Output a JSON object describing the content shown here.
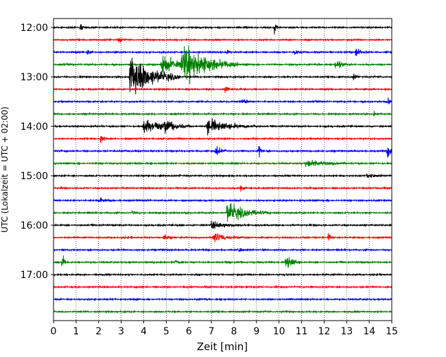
{
  "chart_data": {
    "type": "line",
    "xlabel": "Zeit  [min]",
    "ylabel": "UTC (Lokalzeit = UTC + 02:00)",
    "xlim": [
      0,
      15
    ],
    "xticks": [
      "0",
      "1",
      "2",
      "3",
      "4",
      "5",
      "6",
      "7",
      "8",
      "9",
      "10",
      "11",
      "12",
      "13",
      "14",
      "15"
    ],
    "yticks": [
      "12:00",
      "13:00",
      "14:00",
      "15:00",
      "16:00",
      "17:00"
    ],
    "grid": "vertical dotted at each minute",
    "trace_interval_minutes": 15,
    "trace_count": 24,
    "trace_start": "12:00",
    "trace_colors": [
      "#000000",
      "#ff0000",
      "#0000ff",
      "#008000"
    ],
    "events": [
      {
        "trace": 0,
        "x": 9.8,
        "amp": 0.8,
        "dur": 0.1
      },
      {
        "trace": 0,
        "x": 1.2,
        "amp": 0.5,
        "dur": 0.1
      },
      {
        "trace": 1,
        "x": 2.9,
        "amp": 0.5,
        "dur": 0.1
      },
      {
        "trace": 2,
        "x": 1.5,
        "amp": 0.45,
        "dur": 0.1
      },
      {
        "trace": 2,
        "x": 7.7,
        "amp": 0.4,
        "dur": 0.1
      },
      {
        "trace": 2,
        "x": 10.7,
        "amp": 0.45,
        "dur": 0.1
      },
      {
        "trace": 2,
        "x": 13.4,
        "amp": 0.6,
        "dur": 0.2
      },
      {
        "trace": 3,
        "x": 4.8,
        "amp": 1.4,
        "dur": 0.6
      },
      {
        "trace": 3,
        "x": 5.7,
        "amp": 2.6,
        "dur": 1.0
      },
      {
        "trace": 3,
        "x": 12.5,
        "amp": 0.6,
        "dur": 0.3
      },
      {
        "trace": 4,
        "x": 3.4,
        "amp": 2.8,
        "dur": 0.9
      },
      {
        "trace": 4,
        "x": 13.3,
        "amp": 0.4,
        "dur": 0.1
      },
      {
        "trace": 5,
        "x": 7.6,
        "amp": 0.8,
        "dur": 0.1
      },
      {
        "trace": 6,
        "x": 8.3,
        "amp": 0.4,
        "dur": 0.3
      },
      {
        "trace": 6,
        "x": 14.8,
        "amp": 0.45,
        "dur": 0.1
      },
      {
        "trace": 7,
        "x": 14.2,
        "amp": 0.35,
        "dur": 0.1
      },
      {
        "trace": 8,
        "x": 4.0,
        "amp": 1.0,
        "dur": 0.7
      },
      {
        "trace": 8,
        "x": 4.9,
        "amp": 0.6,
        "dur": 0.5
      },
      {
        "trace": 8,
        "x": 6.8,
        "amp": 1.0,
        "dur": 0.9
      },
      {
        "trace": 9,
        "x": 2.1,
        "amp": 0.8,
        "dur": 0.1
      },
      {
        "trace": 10,
        "x": 7.2,
        "amp": 0.7,
        "dur": 0.2
      },
      {
        "trace": 10,
        "x": 9.1,
        "amp": 0.9,
        "dur": 0.1
      },
      {
        "trace": 10,
        "x": 14.8,
        "amp": 0.9,
        "dur": 0.3
      },
      {
        "trace": 11,
        "x": 11.2,
        "amp": 0.5,
        "dur": 0.7
      },
      {
        "trace": 12,
        "x": 13.9,
        "amp": 0.4,
        "dur": 0.3
      },
      {
        "trace": 13,
        "x": 8.3,
        "amp": 0.5,
        "dur": 0.1
      },
      {
        "trace": 14,
        "x": 2.0,
        "amp": 0.3,
        "dur": 0.3
      },
      {
        "trace": 15,
        "x": 7.7,
        "amp": 1.3,
        "dur": 0.8
      },
      {
        "trace": 15,
        "x": 3.5,
        "amp": 0.35,
        "dur": 0.1
      },
      {
        "trace": 16,
        "x": 7.0,
        "amp": 0.5,
        "dur": 0.6
      },
      {
        "trace": 17,
        "x": 4.9,
        "amp": 0.4,
        "dur": 0.2
      },
      {
        "trace": 17,
        "x": 7.1,
        "amp": 0.6,
        "dur": 0.6
      },
      {
        "trace": 17,
        "x": 12.2,
        "amp": 0.9,
        "dur": 0.1
      },
      {
        "trace": 18,
        "x": 8.2,
        "amp": 0.3,
        "dur": 0.2
      },
      {
        "trace": 19,
        "x": 0.4,
        "amp": 1.0,
        "dur": 0.1
      },
      {
        "trace": 19,
        "x": 10.3,
        "amp": 1.1,
        "dur": 0.3
      },
      {
        "trace": 19,
        "x": 5.4,
        "amp": 0.3,
        "dur": 0.1
      }
    ]
  }
}
